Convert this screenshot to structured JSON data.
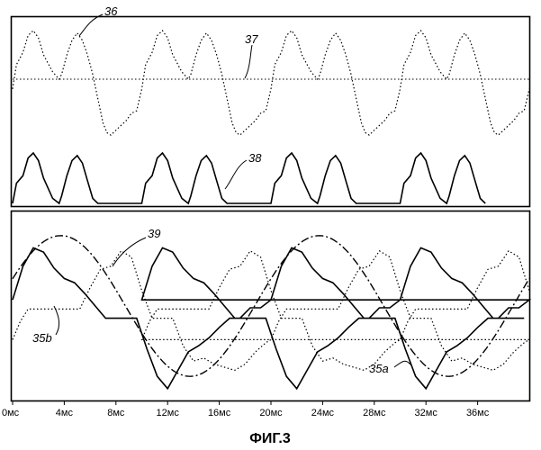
{
  "chart_data": {
    "type": "line",
    "x_tick_labels": [
      "0мс",
      "4мс",
      "8мс",
      "12мс",
      "16мс",
      "20мс",
      "24мс",
      "28мс",
      "32мс",
      "36мс"
    ],
    "x_range": [
      0,
      40
    ],
    "caption": "ФИГ.3",
    "reference_labels": {
      "ref_36": "36",
      "ref_37": "37",
      "ref_38": "38",
      "ref_39": "39",
      "ref_35a": "35a",
      "ref_35b": "35b"
    },
    "periods": [
      0,
      10,
      20,
      30
    ],
    "series": [
      {
        "ref": "36",
        "panel": "top",
        "style": "dotted",
        "x": [
          0,
          0.3,
          0.8,
          1.2,
          1.6,
          2.0,
          2.4,
          3.1,
          3.6,
          3.8,
          4.2,
          4.6,
          5.0,
          5.4,
          5.8,
          6.2,
          6.6,
          7.0,
          7.3,
          7.6,
          8.0,
          8.4,
          8.8,
          9.2,
          9.6,
          10.0
        ],
        "y": [
          -0.2,
          0.3,
          0.55,
          0.9,
          1.0,
          0.85,
          0.5,
          0.15,
          0.0,
          0.1,
          0.5,
          0.8,
          0.95,
          0.8,
          0.5,
          0.1,
          -0.4,
          -0.9,
          -1.1,
          -1.15,
          -1.05,
          -0.95,
          -0.85,
          -0.7,
          -0.65,
          -0.2
        ]
      },
      {
        "ref": "37",
        "panel": "top",
        "style": "dotted",
        "x": [
          0,
          40
        ],
        "y": [
          0,
          0
        ]
      },
      {
        "ref": "38",
        "panel": "top",
        "style": "solid",
        "x": [
          0,
          0.3,
          0.8,
          1.2,
          1.6,
          2.0,
          2.4,
          3.1,
          3.6,
          3.8,
          4.2,
          4.6,
          5.0,
          5.4,
          5.8,
          6.2,
          6.6
        ],
        "y": [
          0,
          0.4,
          0.55,
          0.9,
          1.0,
          0.85,
          0.5,
          0.1,
          0.0,
          0.15,
          0.55,
          0.85,
          0.95,
          0.8,
          0.45,
          0.1,
          0.0
        ]
      },
      {
        "ref": "35a",
        "panel": "bottom",
        "style": "solid",
        "x": [
          0,
          0.8,
          1.6,
          2.4,
          3.2,
          4.0,
          4.8,
          5.6,
          6.4,
          7.2,
          8.0,
          8.8,
          9.6,
          10.4,
          11.2,
          12.0,
          12.8,
          13.6,
          14.4,
          15.2,
          16.0,
          16.8,
          17.6,
          18.4,
          19.2,
          20.0
        ],
        "y": [
          0.1,
          0.65,
          0.95,
          0.88,
          0.62,
          0.45,
          0.38,
          0.2,
          0.0,
          -0.2,
          -0.2,
          -0.2,
          -0.2,
          -0.7,
          -1.15,
          -1.35,
          -1.05,
          -0.75,
          -0.65,
          -0.52,
          -0.35,
          -0.2,
          -0.2,
          -0.03,
          -0.03,
          0.1
        ]
      },
      {
        "ref": "35b",
        "panel": "bottom",
        "style": "dotted",
        "x": [
          0,
          0.6,
          1.2,
          2.0,
          2.8,
          3.6,
          4.4,
          5.2,
          6.0,
          6.8,
          7.6,
          8.4,
          9.2,
          10.0,
          10.8,
          11.6,
          12.4,
          13.2,
          14.0,
          14.8,
          15.6,
          16.4,
          17.2,
          18.0,
          18.8,
          19.6,
          20.0
        ],
        "y": [
          -0.55,
          -0.25,
          -0.05,
          -0.05,
          -0.05,
          -0.05,
          -0.05,
          -0.05,
          0.3,
          0.6,
          0.65,
          0.9,
          0.8,
          0.25,
          -0.2,
          -0.2,
          -0.2,
          -0.65,
          -0.9,
          -0.85,
          -0.95,
          -1.0,
          -1.05,
          -0.95,
          -0.75,
          -0.6,
          -0.55
        ]
      },
      {
        "ref": "39",
        "panel": "bottom",
        "style": "dash-dot",
        "x": [
          0,
          20
        ],
        "y": [
          0,
          0
        ],
        "shape": "sinusoid",
        "period_ms": 20,
        "amplitude": 1.15,
        "phase_ms": 0.4
      }
    ]
  }
}
